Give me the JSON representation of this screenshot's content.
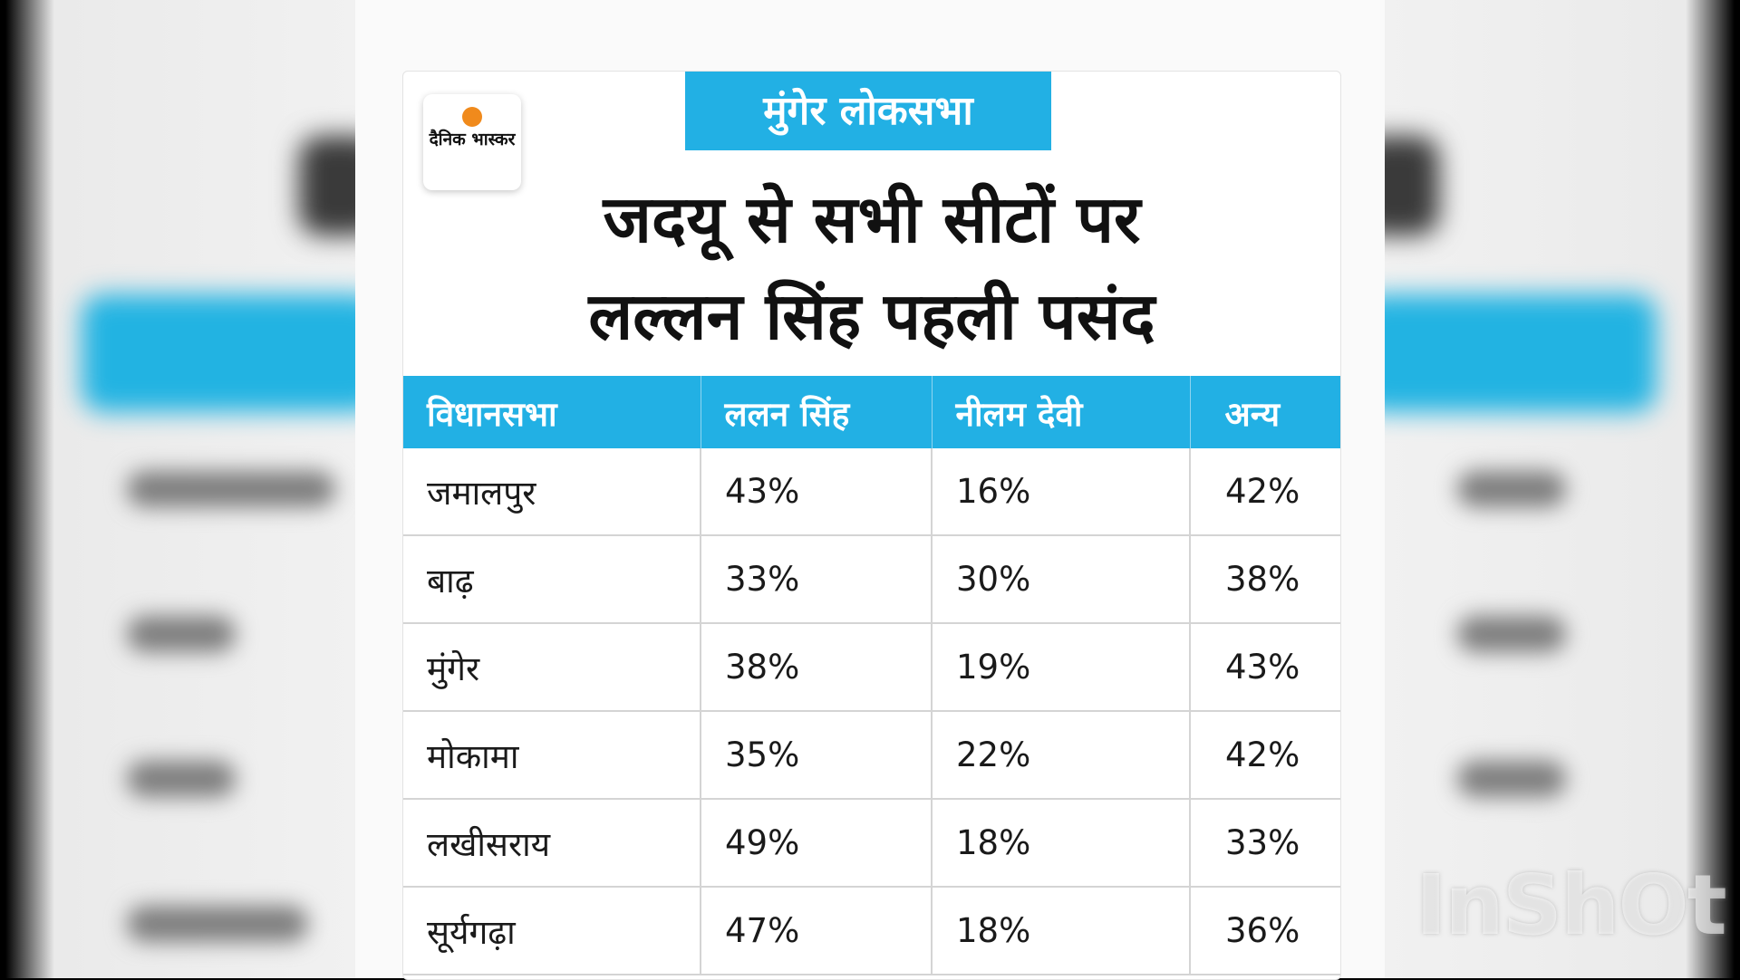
{
  "brand": {
    "logo_text": "दैनिक भास्कर",
    "accent_color": "#22b0e4",
    "logo_dot_color": "#f08a1c"
  },
  "banner": "मुंगेर लोकसभा",
  "headline": [
    "जदयू से सभी सीटों पर",
    "लल्लन सिंह पहली पसंद"
  ],
  "watermark": "InShOt",
  "chart_data": {
    "type": "table",
    "columns": [
      "विधानसभा",
      "ललन सिंह",
      "नीलम देवी",
      "अन्य"
    ],
    "rows": [
      [
        "जमालपुर",
        "43%",
        "16%",
        "42%"
      ],
      [
        "बाढ़",
        "33%",
        "30%",
        "38%"
      ],
      [
        "मुंगेर",
        "38%",
        "19%",
        "43%"
      ],
      [
        "मोकामा",
        "35%",
        "22%",
        "42%"
      ],
      [
        "लखीसराय",
        "49%",
        "18%",
        "33%"
      ],
      [
        "सूर्यगढ़ा",
        "47%",
        "18%",
        "36%"
      ]
    ]
  }
}
